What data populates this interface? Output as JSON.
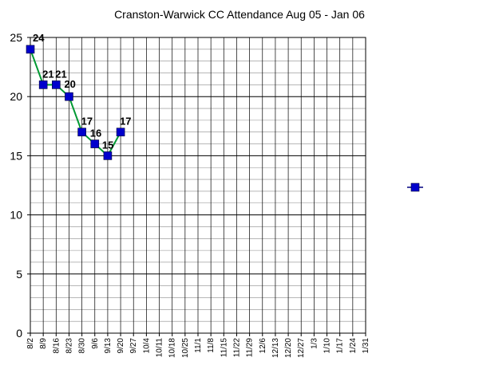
{
  "chart_data": {
    "type": "line",
    "title": "Cranston-Warwick CC Attendance Aug 05 - Jan 06",
    "xlabel": "",
    "ylabel": "",
    "ylim": [
      0,
      25
    ],
    "y_ticks": [
      0,
      5,
      10,
      15,
      20,
      25
    ],
    "grid": true,
    "categories": [
      "8/2",
      "8/9",
      "8/16",
      "8/23",
      "8/30",
      "9/6",
      "9/13",
      "9/20",
      "9/27",
      "10/4",
      "10/11",
      "10/18",
      "10/25",
      "11/1",
      "11/8",
      "11/15",
      "11/22",
      "11/29",
      "12/6",
      "12/13",
      "12/20",
      "12/27",
      "1/3",
      "1/10",
      "1/17",
      "1/24",
      "1/31"
    ],
    "series": [
      {
        "values": [
          24,
          21,
          21,
          20,
          17,
          16,
          15,
          17,
          null,
          null,
          null,
          null,
          null,
          null,
          null,
          null,
          null,
          null,
          null,
          null,
          null,
          null,
          null,
          null,
          null,
          null,
          null
        ],
        "data_labels": [
          "24",
          "21",
          "21",
          "20",
          "17",
          "16",
          "15",
          "17"
        ],
        "line_color": "#009933",
        "marker_color": "#0000cc"
      }
    ],
    "legend": {
      "placement": "right",
      "marker_color": "#0000cc",
      "line_color": "#000080"
    }
  }
}
